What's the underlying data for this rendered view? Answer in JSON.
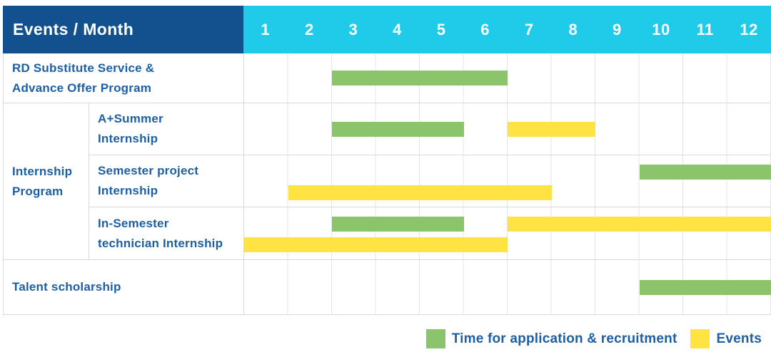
{
  "header": {
    "title": "Events / Month"
  },
  "colors": {
    "header_navy": "#12508e",
    "header_cyan": "#1fcbe9",
    "application_green": "#8bc46a",
    "event_yellow": "#ffe342",
    "label_blue": "#1e5fa3",
    "grid_line": "#e4e4e4",
    "row_border": "#d9d9d9"
  },
  "legend": {
    "items": [
      {
        "id": "application",
        "label": "Time for application & recruitment",
        "color": "#8bc46a"
      },
      {
        "id": "event",
        "label": "Events",
        "color": "#ffe342"
      }
    ]
  },
  "chart_data": {
    "type": "bar",
    "subtype": "gantt-month-timeline",
    "title": "Events / Month",
    "x_label": "Month",
    "x_ticks": [
      "1",
      "2",
      "3",
      "4",
      "5",
      "6",
      "7",
      "8",
      "9",
      "10",
      "11",
      "12"
    ],
    "x_range": [
      1,
      12
    ],
    "grid": true,
    "legend_position": "bottom-right",
    "group_label": "Internship\nProgram",
    "rows": [
      {
        "group": "",
        "label": "RD Substitute Service &\nAdvance Offer Program",
        "bars": [
          {
            "kind": "application",
            "start_month": 3,
            "end_month": 6,
            "lane": "center"
          }
        ]
      },
      {
        "group": "Internship Program",
        "label": "A+Summer\nInternship",
        "bars": [
          {
            "kind": "application",
            "start_month": 3,
            "end_month": 5,
            "lane": "center"
          },
          {
            "kind": "event",
            "start_month": 7,
            "end_month": 8,
            "lane": "center"
          }
        ]
      },
      {
        "group": "Internship Program",
        "label": "Semester project\nInternship",
        "bars": [
          {
            "kind": "application",
            "start_month": 10,
            "end_month": 12,
            "lane": "upper"
          },
          {
            "kind": "event",
            "start_month": 2,
            "end_month": 7,
            "lane": "lower"
          }
        ]
      },
      {
        "group": "Internship Program",
        "label": "In-Semester\ntechnician Internship",
        "bars": [
          {
            "kind": "application",
            "start_month": 3,
            "end_month": 5,
            "lane": "upper"
          },
          {
            "kind": "event",
            "start_month": 7,
            "end_month": 12,
            "lane": "upper"
          },
          {
            "kind": "event",
            "start_month": 1,
            "end_month": 6,
            "lane": "lower"
          }
        ]
      },
      {
        "group": "",
        "label": "Talent scholarship",
        "bars": [
          {
            "kind": "application",
            "start_month": 10,
            "end_month": 12,
            "lane": "center"
          }
        ]
      }
    ]
  }
}
